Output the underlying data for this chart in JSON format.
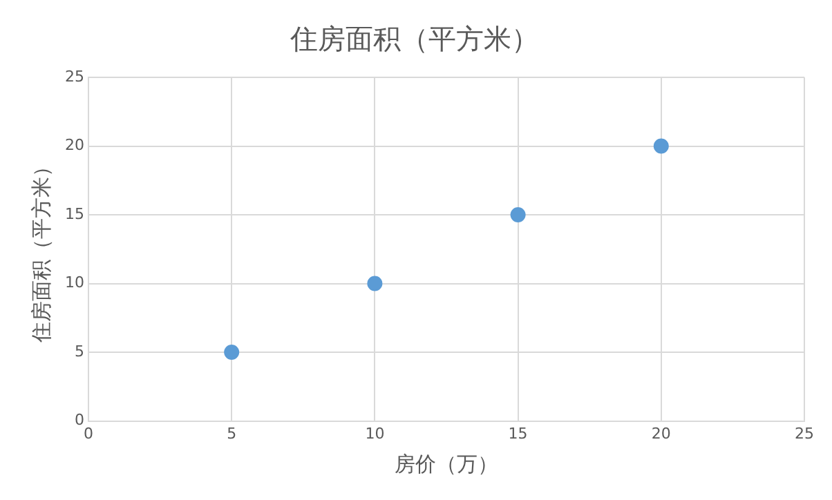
{
  "chart_data": {
    "type": "scatter",
    "title": "住房面积（平方米）",
    "xlabel": "房价（万）",
    "ylabel": "住房面积（平方米）",
    "x": [
      5,
      10,
      15,
      20
    ],
    "series": [
      {
        "color": "#5b9bd5",
        "values": [
          5,
          10,
          15,
          20
        ]
      }
    ],
    "xlim": [
      0,
      25
    ],
    "xticks": [
      0,
      5,
      10,
      15,
      20,
      25
    ],
    "ylim": [
      0,
      25
    ],
    "yticks": [
      0,
      5,
      10,
      15,
      20,
      25
    ],
    "grid": true,
    "legend": false,
    "marker": "circle"
  }
}
